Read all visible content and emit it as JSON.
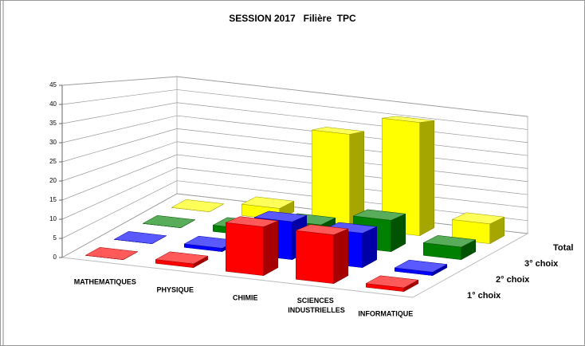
{
  "chart_data": {
    "type": "bar3d",
    "title": "SESSION 2017   Filière  TPC",
    "categories": [
      "MATHEMATIQUES",
      "PHYSIQUE",
      "CHIMIE",
      "SCIENCES INDUSTRIELLES",
      "INFORMATIQUE"
    ],
    "series": [
      {
        "name": "1° choix",
        "color": "#ff0000",
        "values": [
          0,
          1,
          13,
          13,
          1
        ]
      },
      {
        "name": "2° choix",
        "color": "#0000ff",
        "values": [
          0,
          1,
          11,
          10,
          1
        ]
      },
      {
        "name": "3° choix",
        "color": "#008000",
        "values": [
          0,
          2,
          6,
          10,
          4
        ]
      },
      {
        "name": "Total",
        "color": "#ffff00",
        "values": [
          0,
          4,
          33,
          40,
          7
        ]
      }
    ],
    "ylim": [
      0,
      45
    ],
    "yticks": [
      0,
      5,
      10,
      15,
      20,
      25,
      30,
      35,
      40,
      45
    ],
    "grid": true
  }
}
